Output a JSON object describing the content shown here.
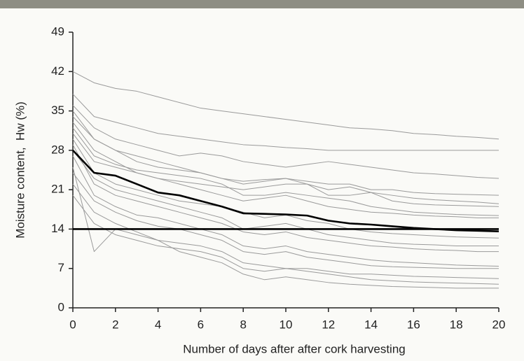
{
  "chart_data": {
    "type": "line",
    "x_label": "Number of days after after cork harvesting",
    "y_label": "Moisture content,  Hw (%)",
    "x": [
      0,
      1,
      2,
      3,
      4,
      5,
      6,
      7,
      8,
      9,
      10,
      11,
      12,
      13,
      14,
      15,
      16,
      17,
      18,
      19,
      20
    ],
    "xlim": [
      0,
      20
    ],
    "xticks": [
      0,
      2,
      4,
      6,
      8,
      10,
      12,
      14,
      16,
      18,
      20
    ],
    "ylim": [
      0,
      49
    ],
    "yticks": [
      0,
      7,
      14,
      21,
      28,
      35,
      42,
      49
    ],
    "grid": false,
    "series": [
      {
        "color": "#9a9a9a",
        "values": [
          42,
          40,
          39,
          38.5,
          37.5,
          36.5,
          35.5,
          35,
          34.5,
          34,
          33.5,
          33,
          32.5,
          32,
          31.8,
          31.5,
          31,
          30.8,
          30.5,
          30.3,
          30
        ]
      },
      {
        "color": "#9a9a9a",
        "values": [
          38,
          34,
          33,
          32,
          31,
          30.5,
          30,
          29.5,
          29,
          28.8,
          28.5,
          28.3,
          28,
          28,
          28,
          28,
          28,
          28,
          28,
          28,
          28
        ]
      },
      {
        "color": "#9a9a9a",
        "values": [
          36,
          32,
          30,
          29,
          28,
          27,
          27.5,
          27,
          26,
          25.5,
          25,
          25.5,
          26,
          25.5,
          25,
          24.5,
          24,
          23.8,
          23.5,
          23.2,
          23
        ]
      },
      {
        "color": "#9a9a9a",
        "values": [
          34,
          30,
          28,
          27,
          26,
          25,
          24,
          23,
          22,
          22.5,
          23,
          22,
          21,
          21.5,
          20.5,
          20,
          19.5,
          19.2,
          19,
          18.8,
          18.5
        ]
      },
      {
        "color": "#9a9a9a",
        "values": [
          33,
          28,
          26,
          24,
          23,
          22,
          21,
          20,
          19,
          19.5,
          20,
          19,
          18,
          17.5,
          17,
          16.8,
          16.5,
          16.3,
          16.2,
          16,
          16
        ]
      },
      {
        "color": "#9a9a9a",
        "values": [
          30,
          24,
          22,
          21,
          20,
          19,
          18.5,
          18,
          17,
          16,
          16.5,
          15.5,
          15,
          14,
          13.5,
          13.2,
          13,
          12.8,
          12.6,
          12.5,
          12.4
        ]
      },
      {
        "color": "#9a9a9a",
        "values": [
          29,
          22,
          20,
          19,
          18,
          17,
          16,
          15,
          13.5,
          13,
          13.5,
          12.5,
          12,
          11.5,
          11,
          10.8,
          10.5,
          10.3,
          10.2,
          10,
          10
        ]
      },
      {
        "color": "#9a9a9a",
        "values": [
          27,
          20,
          18,
          16.5,
          16,
          15,
          14,
          13,
          11,
          10.5,
          11,
          10,
          9.5,
          9,
          8.5,
          8.2,
          8,
          7.8,
          7.6,
          7.5,
          7.4
        ]
      },
      {
        "color": "#9a9a9a",
        "values": [
          25,
          10,
          14,
          13,
          12,
          11.5,
          11,
          10,
          8,
          7.5,
          7,
          7,
          6.5,
          6,
          6,
          5.8,
          5.6,
          5.5,
          5.4,
          5.3,
          5.2
        ]
      },
      {
        "color": "#9a9a9a",
        "values": [
          22,
          17,
          15,
          13.5,
          12,
          10,
          9,
          8,
          6,
          5,
          5.5,
          5,
          4.5,
          4.2,
          4,
          3.8,
          3.7,
          3.6,
          3.5,
          3.5,
          3.5
        ]
      },
      {
        "color": "#9a9a9a",
        "values": [
          31,
          26,
          25,
          24,
          23,
          22.5,
          22,
          21.5,
          21,
          21.5,
          22,
          22,
          20,
          20,
          20.5,
          19,
          18.5,
          18.3,
          18.2,
          18.1,
          18
        ]
      },
      {
        "color": "#9a9a9a",
        "values": [
          35,
          30,
          28,
          26,
          25,
          24.5,
          24,
          23,
          22.5,
          22.8,
          23,
          22.5,
          22,
          22,
          21,
          21,
          20.5,
          20.3,
          20.2,
          20.1,
          20
        ]
      },
      {
        "color": "#9a9a9a",
        "values": [
          24,
          19,
          17,
          15.5,
          14.5,
          14,
          13,
          12,
          10,
          9.5,
          10,
          9,
          8.5,
          8,
          7.5,
          7.3,
          7.2,
          7.1,
          7,
          7,
          7
        ]
      },
      {
        "color": "#9a9a9a",
        "values": [
          28,
          23,
          21,
          20,
          19,
          18,
          17,
          16,
          14,
          14.5,
          15,
          14,
          13,
          12.5,
          12,
          11.5,
          11.3,
          11.2,
          11,
          11,
          11
        ]
      },
      {
        "color": "#9a9a9a",
        "values": [
          32,
          27,
          25.5,
          24.5,
          24,
          23.5,
          23,
          22,
          20,
          20,
          20.5,
          20,
          19.5,
          19,
          18,
          17.5,
          17,
          16.8,
          16.6,
          16.5,
          16.4
        ]
      },
      {
        "color": "#9a9a9a",
        "values": [
          20,
          15,
          13,
          12,
          11,
          10.5,
          10,
          9,
          7,
          6.5,
          7,
          6.5,
          6,
          5.5,
          5,
          4.8,
          4.6,
          4.5,
          4.4,
          4.3,
          4.2
        ]
      },
      {
        "color": "#000000",
        "values": [
          14,
          14,
          14,
          14,
          14,
          14,
          14,
          14,
          14,
          14,
          14,
          14,
          14,
          14,
          14,
          14,
          14,
          14,
          14,
          14,
          14
        ]
      },
      {
        "color": "#000000",
        "values": [
          28,
          24,
          23.5,
          22,
          20.5,
          20,
          19,
          18,
          16.8,
          16.7,
          16.6,
          16.4,
          15.5,
          15,
          14.8,
          14.5,
          14.2,
          14,
          13.8,
          13.7,
          13.6
        ]
      }
    ]
  }
}
